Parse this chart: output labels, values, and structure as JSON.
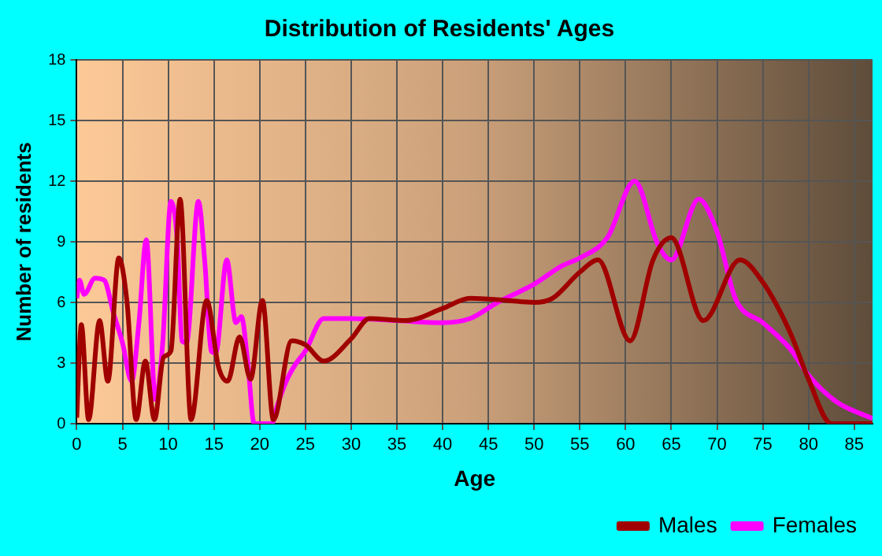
{
  "chart_data": {
    "type": "line",
    "title": "Distribution of Residents' Ages",
    "xlabel": "Age",
    "ylabel": "Number of residents",
    "xlim": [
      0,
      87
    ],
    "xticks": [
      0,
      5,
      10,
      15,
      20,
      25,
      30,
      35,
      40,
      45,
      50,
      55,
      60,
      65,
      70,
      75,
      80,
      85
    ],
    "ylim": [
      0,
      18
    ],
    "yticks": [
      0,
      3,
      6,
      9,
      12,
      15,
      18
    ],
    "grid": true,
    "legend": "bottom right",
    "marker": "none",
    "line_style": "solid",
    "series": [
      {
        "name": "Males",
        "color": "#a00000",
        "x": [
          0,
          0.5,
          1.3,
          2.5,
          3.4,
          4.6,
          5.5,
          6.5,
          7.5,
          8.5,
          9.5,
          10.3,
          11.3,
          12.5,
          14.2,
          15.5,
          16.5,
          17.8,
          19,
          20.3,
          21.5,
          23.5,
          25,
          27,
          30,
          32,
          36,
          40,
          43,
          47,
          50,
          52,
          55,
          57,
          60.5,
          63,
          65,
          68.5,
          72.5,
          75,
          78,
          80,
          82.5,
          87
        ],
        "values": [
          0.3,
          4.9,
          0.2,
          5.1,
          2.1,
          8.2,
          6,
          0.2,
          3.1,
          0.2,
          3.3,
          3.6,
          11.1,
          0.2,
          6.1,
          2.8,
          2.1,
          4.3,
          2.2,
          6.1,
          0.2,
          4.1,
          3.9,
          3.1,
          4.2,
          5.2,
          5.1,
          5.7,
          6.2,
          6.1,
          6,
          6.2,
          7.5,
          8.1,
          4.1,
          8.1,
          9.2,
          5.1,
          8.1,
          7,
          4.5,
          2.2,
          0,
          0
        ]
      },
      {
        "name": "Females",
        "color": "#ff00ff",
        "x": [
          0,
          0.3,
          0.8,
          2,
          3,
          4,
          5,
          6,
          6.8,
          7.6,
          8.6,
          9.4,
          10.3,
          11,
          11.5,
          12,
          13.3,
          14,
          14.7,
          15.2,
          16.4,
          17.4,
          18,
          18.7,
          19.4,
          20,
          21.3,
          22,
          23,
          24,
          25,
          27,
          30,
          35,
          40,
          43,
          46,
          50,
          53,
          55,
          58,
          61,
          63.5,
          65,
          68,
          70,
          72,
          75,
          78,
          80,
          83,
          87
        ],
        "values": [
          6.2,
          7.1,
          6.4,
          7.2,
          7.1,
          5.5,
          4,
          2.1,
          5,
          9.1,
          1.2,
          4,
          11,
          9,
          4.1,
          4,
          11,
          8,
          3.6,
          3.5,
          8.1,
          5,
          5.3,
          3,
          0,
          0,
          0,
          1,
          2.2,
          3,
          3.6,
          5.2,
          5.2,
          5.1,
          5,
          5.2,
          6,
          6.9,
          7.8,
          8.2,
          9.2,
          12,
          8.9,
          8.1,
          11.1,
          9.5,
          6.2,
          5,
          3.7,
          2.4,
          1.1,
          0.25
        ]
      }
    ]
  }
}
